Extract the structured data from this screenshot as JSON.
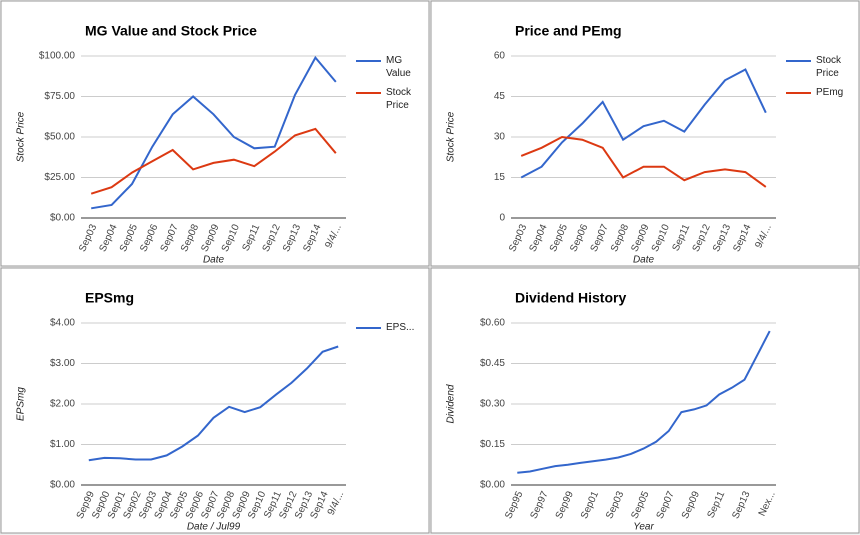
{
  "chart_data": [
    {
      "type": "line",
      "title": "MG Value and Stock Price",
      "xlabel": "Date",
      "ylabel": "Stock Price",
      "categories": [
        "Sep03",
        "Sep04",
        "Sep05",
        "Sep06",
        "Sep07",
        "Sep08",
        "Sep09",
        "Sep10",
        "Sep11",
        "Sep12",
        "Sep13",
        "Sep14",
        "9/4/..."
      ],
      "series": [
        {
          "name": "MG Value",
          "color": "#3366cc",
          "values": [
            6,
            8,
            21,
            44,
            64,
            75,
            64,
            50,
            43,
            44,
            76,
            99,
            84
          ]
        },
        {
          "name": "Stock Price",
          "color": "#dc3912",
          "values": [
            15,
            19,
            28,
            35,
            42,
            30,
            34,
            36,
            32,
            41,
            51,
            55,
            40
          ]
        }
      ],
      "ylim": [
        0,
        100
      ],
      "yticks": [
        {
          "value": 0,
          "label": "$0.00"
        },
        {
          "value": 25,
          "label": "$25.00"
        },
        {
          "value": 50,
          "label": "$50.00"
        },
        {
          "value": 75,
          "label": "$75.00"
        },
        {
          "value": 100,
          "label": "$100.00"
        }
      ],
      "grid": true,
      "legend": "right"
    },
    {
      "type": "line",
      "title": "Price and PEmg",
      "xlabel": "Date",
      "ylabel": "Stock Price",
      "categories": [
        "Sep03",
        "Sep04",
        "Sep05",
        "Sep06",
        "Sep07",
        "Sep08",
        "Sep09",
        "Sep10",
        "Sep11",
        "Sep12",
        "Sep13",
        "Sep14",
        "9/4/..."
      ],
      "series": [
        {
          "name": "Stock Price",
          "color": "#3366cc",
          "values": [
            15,
            19,
            28,
            35,
            43,
            29,
            34,
            36,
            32,
            42,
            51,
            55,
            39
          ]
        },
        {
          "name": "PEmg",
          "color": "#dc3912",
          "values": [
            23,
            26,
            30,
            29,
            26,
            15,
            19,
            19,
            14,
            17,
            18,
            17,
            11.5
          ]
        }
      ],
      "ylim": [
        0,
        60
      ],
      "yticks": [
        0,
        15,
        30,
        45,
        60
      ],
      "grid": true,
      "legend": "right"
    },
    {
      "type": "line",
      "title": "EPSmg",
      "xlabel": "Date / Jul99",
      "ylabel": "EPSmg",
      "categories": [
        "Sep99",
        "Sep00",
        "Sep01",
        "Sep02",
        "Sep03",
        "Sep04",
        "Sep05",
        "Sep06",
        "Sep07",
        "Sep08",
        "Sep09",
        "Sep10",
        "Sep11",
        "Sep12",
        "Sep13",
        "Sep14",
        "9/4/..."
      ],
      "series": [
        {
          "name": "EPS...",
          "color": "#3366cc",
          "values": [
            0.61,
            0.67,
            0.66,
            0.63,
            0.63,
            0.73,
            0.95,
            1.22,
            1.66,
            1.93,
            1.8,
            1.92,
            2.23,
            2.52,
            2.88,
            3.29,
            3.42
          ]
        }
      ],
      "ylim": [
        0,
        4
      ],
      "yticks": [
        {
          "value": 0,
          "label": "$0.00"
        },
        {
          "value": 1,
          "label": "$1.00"
        },
        {
          "value": 2,
          "label": "$2.00"
        },
        {
          "value": 3,
          "label": "$3.00"
        },
        {
          "value": 4,
          "label": "$4.00"
        }
      ],
      "grid": true,
      "legend": "right"
    },
    {
      "type": "line",
      "title": "Dividend History",
      "xlabel": "Year",
      "ylabel": "Dividend",
      "categories": [
        "Sep95",
        null,
        "Sep97",
        null,
        "Sep99",
        null,
        "Sep01",
        null,
        "Sep03",
        null,
        "Sep05",
        null,
        "Sep07",
        null,
        "Sep09",
        null,
        "Sep11",
        null,
        "Sep13",
        null,
        "Nex..."
      ],
      "series": [
        {
          "color": "#3366cc",
          "values": [
            0.045,
            0.05,
            0.06,
            0.07,
            0.075,
            0.082,
            0.088,
            0.094,
            0.102,
            0.115,
            0.135,
            0.16,
            0.2,
            0.27,
            0.28,
            0.295,
            0.335,
            0.36,
            0.39,
            0.48,
            0.57
          ]
        }
      ],
      "ylim": [
        0,
        0.6
      ],
      "yticks": [
        {
          "value": 0,
          "label": "$0.00"
        },
        {
          "value": 0.15,
          "label": "$0.15"
        },
        {
          "value": 0.3,
          "label": "$0.30"
        },
        {
          "value": 0.45,
          "label": "$0.45"
        },
        {
          "value": 0.6,
          "label": "$0.60"
        }
      ],
      "grid": true
    }
  ]
}
